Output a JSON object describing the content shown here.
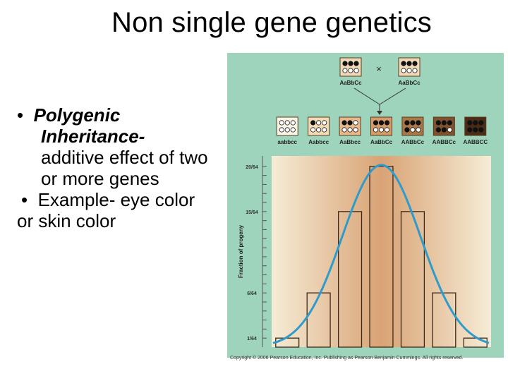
{
  "slide": {
    "title": "Non single gene genetics",
    "bullets": {
      "b1_bold_line1": "Polygenic",
      "b1_bold_line2": "Inheritance-",
      "b1_text_line1": "additive effect of two",
      "b1_text_line2": "or more genes",
      "b2_line1": "Example- eye color",
      "b2_line2": "or skin color",
      "bullet_char": "•"
    }
  },
  "figure": {
    "copyright": "Copyright © 2006 Pearson Education, Inc. Publishing as Pearson Benjamin Cummings. All rights reserved.",
    "cross": {
      "symbol": "×",
      "parent1": "AaBbCc",
      "parent2": "AaBbCc",
      "parent_dark_dots": 3
    },
    "colors": {
      "panel": "#9ed4bb",
      "curve": "#2f9bcb",
      "bar_outline": "#3b2a1c"
    },
    "chart_data": {
      "type": "bar",
      "ylabel": "Fraction of progeny",
      "tick_labels": [
        "20/64",
        "15/64",
        "6/64",
        "1/64"
      ],
      "categories": [
        "aabbcc",
        "Aabbcc",
        "AaBbcc",
        "AaBbCc",
        "AABbCc",
        "AABBCc",
        "AABBCC"
      ],
      "values": [
        1,
        6,
        15,
        20,
        15,
        6,
        1
      ],
      "value_denominator": 64,
      "dark_dots": [
        0,
        1,
        2,
        3,
        4,
        5,
        6
      ],
      "box_colors": [
        "#fbf6e6",
        "#f3dbb7",
        "#e6b88a",
        "#d49a68",
        "#a97748",
        "#7e5230",
        "#4a2c16"
      ],
      "overlay": "bell curve",
      "ylim": [
        0,
        21
      ]
    }
  }
}
